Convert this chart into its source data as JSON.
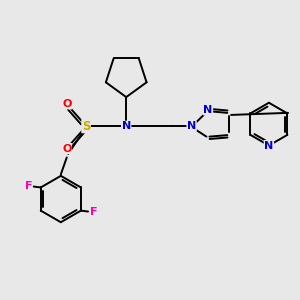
{
  "bg_color": "#e8e8e8",
  "atom_colors": {
    "N": "#0000cc",
    "O": "#ff0000",
    "S": "#ccaa00",
    "F": "#ff00aa"
  },
  "figsize": [
    3.0,
    3.0
  ],
  "dpi": 100
}
